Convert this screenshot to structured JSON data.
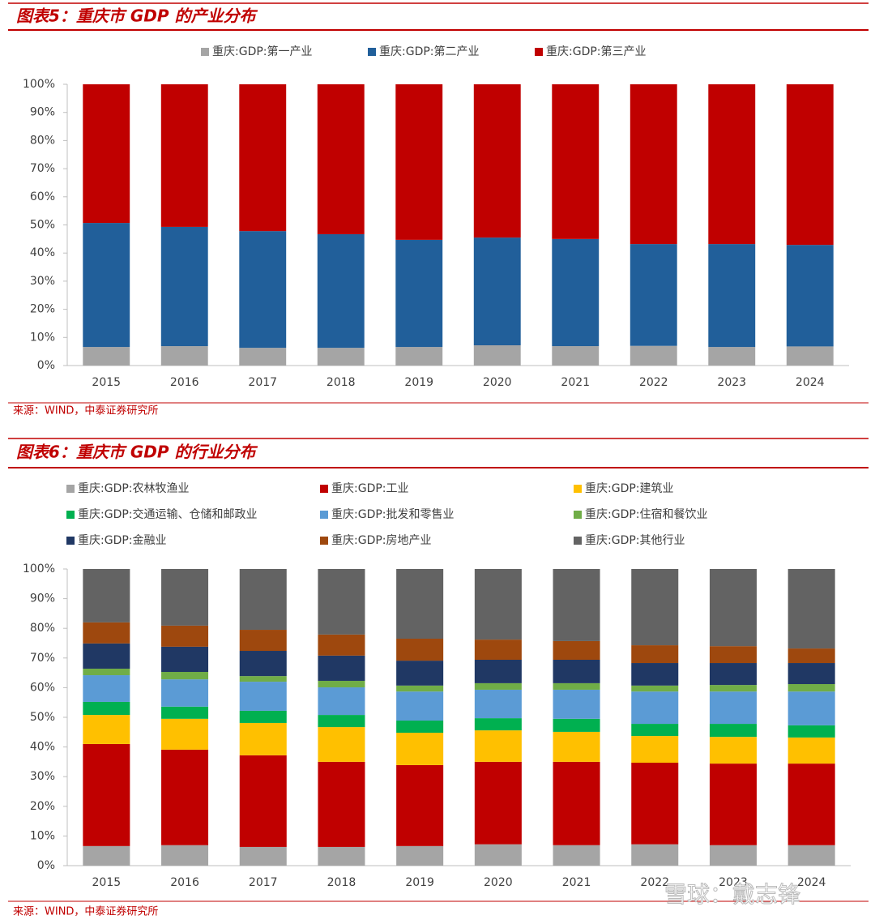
{
  "chart_data": [
    {
      "type": "stacked_bar",
      "title": "图表5：重庆市 GDP 的产业分布",
      "source": "来源：WIND，中泰证券研究所",
      "categories": [
        "2015",
        "2016",
        "2017",
        "2018",
        "2019",
        "2020",
        "2021",
        "2022",
        "2023",
        "2024"
      ],
      "series": [
        {
          "name": "重庆:GDP:第一产业",
          "color": "#a5a5a5",
          "values": [
            6.6,
            6.9,
            6.3,
            6.3,
            6.6,
            7.2,
            6.9,
            7.0,
            6.6,
            6.8
          ]
        },
        {
          "name": "重庆:GDP:第二产业",
          "color": "#215f9a",
          "values": [
            44.1,
            42.4,
            41.5,
            40.4,
            38.1,
            38.3,
            38.1,
            36.2,
            36.6,
            36.1
          ]
        },
        {
          "name": "重庆:GDP:第三产业",
          "color": "#c00000",
          "values": [
            49.3,
            50.7,
            52.2,
            53.3,
            55.3,
            54.5,
            55.0,
            56.8,
            56.8,
            57.1
          ]
        }
      ],
      "ylim": [
        0,
        100
      ],
      "yticks": [
        {
          "value": 0,
          "label": "0%"
        },
        {
          "value": 10,
          "label": "10%"
        },
        {
          "value": 20,
          "label": "20%"
        },
        {
          "value": 30,
          "label": "30%"
        },
        {
          "value": 40,
          "label": "40%"
        },
        {
          "value": 50,
          "label": "50%"
        },
        {
          "value": 60,
          "label": "60%"
        },
        {
          "value": 70,
          "label": "70%"
        },
        {
          "value": 80,
          "label": "80%"
        },
        {
          "value": 90,
          "label": "90%"
        },
        {
          "value": 100,
          "label": "100%"
        }
      ],
      "grid": false
    },
    {
      "type": "stacked_bar",
      "title": "图表6：重庆市 GDP 的行业分布",
      "source": "来源：WIND，中泰证券研究所",
      "categories": [
        "2015",
        "2016",
        "2017",
        "2018",
        "2019",
        "2020",
        "2021",
        "2022",
        "2023",
        "2024"
      ],
      "series": [
        {
          "name": "重庆:GDP:农林牧渔业",
          "color": "#a5a5a5",
          "values": [
            6.6,
            6.9,
            6.3,
            6.3,
            6.6,
            7.2,
            6.9,
            7.2,
            6.9,
            6.9
          ]
        },
        {
          "name": "重庆:GDP:工业",
          "color": "#c00000",
          "values": [
            34.4,
            32.2,
            30.9,
            28.7,
            27.3,
            27.8,
            28.1,
            27.5,
            27.5,
            27.5
          ]
        },
        {
          "name": "重庆:GDP:建筑业",
          "color": "#ffc000",
          "values": [
            9.8,
            10.4,
            10.9,
            11.7,
            10.9,
            10.6,
            10.1,
            9.0,
            9.0,
            8.8
          ]
        },
        {
          "name": "重庆:GDP:交通运输、仓储和邮政业",
          "color": "#00b050",
          "values": [
            4.4,
            4.1,
            4.1,
            4.1,
            4.1,
            4.1,
            4.4,
            4.1,
            4.4,
            4.1
          ]
        },
        {
          "name": "重庆:GDP:批发和零售业",
          "color": "#5b9bd5",
          "values": [
            9.0,
            9.2,
            9.8,
            9.3,
            9.8,
            9.6,
            9.8,
            10.9,
            10.9,
            11.4
          ]
        },
        {
          "name": "重庆:GDP:住宿和餐饮业",
          "color": "#70ad47",
          "values": [
            2.2,
            2.5,
            1.9,
            2.2,
            2.0,
            2.2,
            2.2,
            2.0,
            2.2,
            2.5
          ]
        },
        {
          "name": "重庆:GDP:金融业",
          "color": "#203864",
          "values": [
            8.5,
            8.5,
            8.5,
            8.5,
            8.4,
            7.9,
            7.9,
            7.6,
            7.4,
            7.1
          ]
        },
        {
          "name": "重庆:GDP:房地产业",
          "color": "#9e480e",
          "values": [
            7.1,
            7.1,
            7.1,
            7.1,
            7.4,
            6.8,
            6.3,
            6.0,
            5.7,
            4.9
          ]
        },
        {
          "name": "重庆:GDP:其他行业",
          "color": "#636363",
          "values": [
            18.0,
            19.1,
            20.5,
            22.1,
            23.5,
            23.8,
            24.3,
            25.7,
            26.0,
            26.8
          ]
        }
      ],
      "ylim": [
        0,
        100
      ],
      "yticks": [
        {
          "value": 0,
          "label": "0%"
        },
        {
          "value": 10,
          "label": "10%"
        },
        {
          "value": 20,
          "label": "20%"
        },
        {
          "value": 30,
          "label": "30%"
        },
        {
          "value": 40,
          "label": "40%"
        },
        {
          "value": 50,
          "label": "50%"
        },
        {
          "value": 60,
          "label": "60%"
        },
        {
          "value": 70,
          "label": "70%"
        },
        {
          "value": 80,
          "label": "80%"
        },
        {
          "value": 90,
          "label": "90%"
        },
        {
          "value": 100,
          "label": "100%"
        }
      ],
      "grid": false
    }
  ],
  "watermark": "雪球：戴志锋"
}
